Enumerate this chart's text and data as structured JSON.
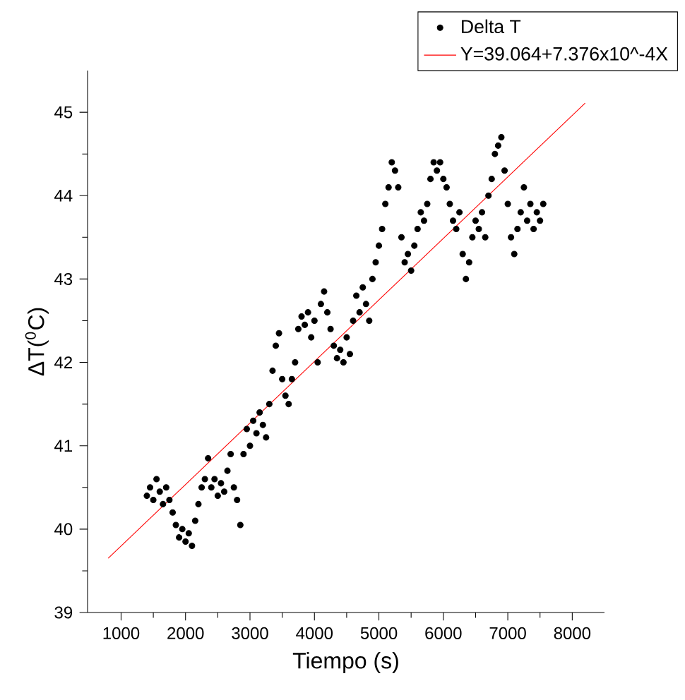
{
  "chart_data": {
    "type": "scatter",
    "xlabel": "Tiempo (s)",
    "ylabel": "ΔT($^{0}$C)",
    "xlim": [
      480,
      8500
    ],
    "ylim": [
      39,
      45.5
    ],
    "xticks": [
      1000,
      2000,
      3000,
      4000,
      5000,
      6000,
      7000,
      8000
    ],
    "yticks": [
      39,
      40,
      41,
      42,
      43,
      44,
      45
    ],
    "legend": "top right",
    "series": [
      {
        "name": "Delta T",
        "marker": "circle",
        "color": "#000000",
        "x": [
          1400,
          1450,
          1500,
          1550,
          1600,
          1650,
          1700,
          1750,
          1800,
          1850,
          1900,
          1950,
          2000,
          2050,
          2100,
          2150,
          2200,
          2250,
          2300,
          2350,
          2400,
          2450,
          2500,
          2550,
          2600,
          2650,
          2700,
          2750,
          2800,
          2850,
          2900,
          2950,
          3000,
          3050,
          3100,
          3150,
          3200,
          3250,
          3300,
          3350,
          3400,
          3450,
          3500,
          3550,
          3600,
          3650,
          3700,
          3750,
          3800,
          3850,
          3900,
          3950,
          4000,
          4050,
          4100,
          4150,
          4200,
          4250,
          4300,
          4350,
          4400,
          4450,
          4500,
          4550,
          4600,
          4650,
          4700,
          4750,
          4800,
          4850,
          4900,
          4950,
          5000,
          5050,
          5100,
          5150,
          5200,
          5250,
          5300,
          5350,
          5400,
          5450,
          5500,
          5550,
          5600,
          5650,
          5700,
          5750,
          5800,
          5850,
          5900,
          5950,
          6000,
          6050,
          6100,
          6150,
          6200,
          6250,
          6300,
          6350,
          6400,
          6450,
          6500,
          6550,
          6600,
          6650,
          6700,
          6750,
          6800,
          6850,
          6900,
          6950,
          7000,
          7050,
          7100,
          7150,
          7200,
          7250,
          7300,
          7350,
          7400,
          7450,
          7500,
          7550
        ],
        "values": [
          40.4,
          40.5,
          40.35,
          40.6,
          40.45,
          40.3,
          40.5,
          40.35,
          40.2,
          40.05,
          39.9,
          40.0,
          39.85,
          39.95,
          39.8,
          40.1,
          40.3,
          40.5,
          40.6,
          40.85,
          40.5,
          40.6,
          40.4,
          40.55,
          40.45,
          40.7,
          40.9,
          40.5,
          40.35,
          40.05,
          40.9,
          41.2,
          41.0,
          41.3,
          41.15,
          41.4,
          41.25,
          41.1,
          41.5,
          41.9,
          42.2,
          42.35,
          41.8,
          41.6,
          41.5,
          41.8,
          42.0,
          42.4,
          42.55,
          42.45,
          42.6,
          42.3,
          42.5,
          42.0,
          42.7,
          42.85,
          42.6,
          42.4,
          42.2,
          42.05,
          42.15,
          42.0,
          42.3,
          42.1,
          42.5,
          42.8,
          42.6,
          42.9,
          42.7,
          42.5,
          43.0,
          43.2,
          43.4,
          43.6,
          43.9,
          44.1,
          44.4,
          44.3,
          44.1,
          43.5,
          43.2,
          43.3,
          43.1,
          43.4,
          43.6,
          43.8,
          43.7,
          43.9,
          44.2,
          44.4,
          44.3,
          44.4,
          44.2,
          44.1,
          43.9,
          43.7,
          43.6,
          43.8,
          43.3,
          43.0,
          43.2,
          43.5,
          43.7,
          43.6,
          43.8,
          43.5,
          44.0,
          44.2,
          44.5,
          44.6,
          44.7,
          44.3,
          43.9,
          43.5,
          43.3,
          43.6,
          43.8,
          44.1,
          43.7,
          43.9,
          43.6,
          43.8,
          43.7,
          43.9
        ]
      },
      {
        "name": "Y=39.064+7.376x10^-4X",
        "type": "line",
        "color": "#ff0000",
        "x": [
          800,
          8200
        ],
        "values": [
          39.65,
          45.11
        ]
      }
    ]
  }
}
